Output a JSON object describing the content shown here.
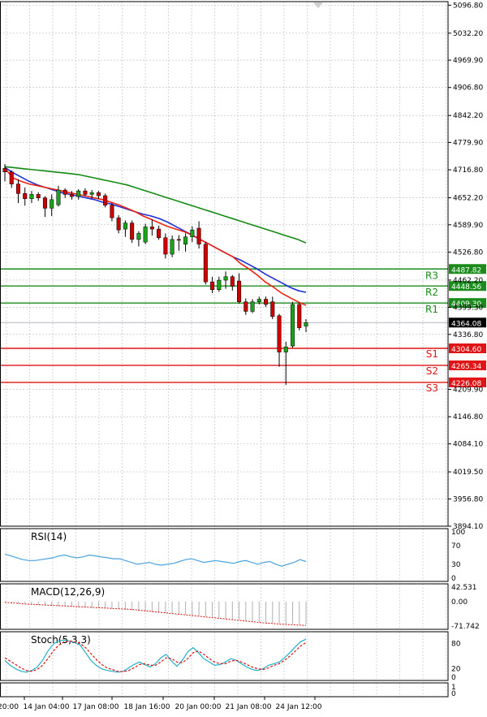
{
  "colors": {
    "background": "#ffffff",
    "grid": "#9aa0a6",
    "frame": "#000000",
    "bull": "#1aa31a",
    "bear": "#cc0000",
    "wick": "#000000",
    "ma_fast": "#ee2211",
    "ma_mid": "#1f2fd6",
    "ma_slow": "#138a13",
    "resistance": "#1b8c1b",
    "support": "#e01414",
    "current": "#000000",
    "rsi": "#4aa3df",
    "macd_hist": "#b0b0b0",
    "macd_signal": "#dd1111",
    "stoch_main": "#21b0c8",
    "stoch_signal": "#dd1111"
  },
  "chart_data": {
    "type": "candlestick",
    "title": "",
    "y_ticks": [
      "5096.80",
      "5032.20",
      "4969.90",
      "4906.80",
      "4842.20",
      "4779.90",
      "4716.80",
      "4652.20",
      "4589.90",
      "4526.80",
      "4462.20",
      "4399.30",
      "4336.80",
      "4209.90",
      "4146.80",
      "4084.10",
      "4019.50",
      "3956.80",
      "3894.10"
    ],
    "x_ticks": [
      "20:00",
      "14 Jan 04:00",
      "17 Jan 08:00",
      "18 Jan 16:00",
      "20 Jan 00:00",
      "21 Jan 08:00",
      "24 Jan 12:00"
    ],
    "ylim": [
      3894.1,
      5105
    ],
    "candles": [
      {
        "o": 4720,
        "h": 4730,
        "l": 4690,
        "c": 4712
      },
      {
        "o": 4712,
        "h": 4715,
        "l": 4675,
        "c": 4684
      },
      {
        "o": 4684,
        "h": 4695,
        "l": 4640,
        "c": 4662
      },
      {
        "o": 4662,
        "h": 4676,
        "l": 4634,
        "c": 4650
      },
      {
        "o": 4650,
        "h": 4668,
        "l": 4640,
        "c": 4660
      },
      {
        "o": 4660,
        "h": 4665,
        "l": 4645,
        "c": 4652
      },
      {
        "o": 4652,
        "h": 4656,
        "l": 4608,
        "c": 4628
      },
      {
        "o": 4628,
        "h": 4660,
        "l": 4610,
        "c": 4648
      },
      {
        "o": 4636,
        "h": 4680,
        "l": 4632,
        "c": 4670
      },
      {
        "o": 4670,
        "h": 4674,
        "l": 4652,
        "c": 4660
      },
      {
        "o": 4660,
        "h": 4668,
        "l": 4648,
        "c": 4655
      },
      {
        "o": 4655,
        "h": 4672,
        "l": 4648,
        "c": 4668
      },
      {
        "o": 4668,
        "h": 4674,
        "l": 4656,
        "c": 4660
      },
      {
        "o": 4660,
        "h": 4670,
        "l": 4650,
        "c": 4664
      },
      {
        "o": 4664,
        "h": 4668,
        "l": 4650,
        "c": 4657
      },
      {
        "o": 4657,
        "h": 4662,
        "l": 4630,
        "c": 4635
      },
      {
        "o": 4635,
        "h": 4640,
        "l": 4598,
        "c": 4606
      },
      {
        "o": 4606,
        "h": 4612,
        "l": 4570,
        "c": 4578
      },
      {
        "o": 4580,
        "h": 4600,
        "l": 4562,
        "c": 4594
      },
      {
        "o": 4594,
        "h": 4600,
        "l": 4548,
        "c": 4556
      },
      {
        "o": 4556,
        "h": 4575,
        "l": 4540,
        "c": 4570
      },
      {
        "o": 4550,
        "h": 4592,
        "l": 4545,
        "c": 4585
      },
      {
        "o": 4585,
        "h": 4602,
        "l": 4565,
        "c": 4580
      },
      {
        "o": 4580,
        "h": 4588,
        "l": 4555,
        "c": 4560
      },
      {
        "o": 4560,
        "h": 4570,
        "l": 4512,
        "c": 4522
      },
      {
        "o": 4522,
        "h": 4565,
        "l": 4515,
        "c": 4556
      },
      {
        "o": 4556,
        "h": 4566,
        "l": 4530,
        "c": 4555
      },
      {
        "o": 4545,
        "h": 4570,
        "l": 4528,
        "c": 4562
      },
      {
        "o": 4562,
        "h": 4586,
        "l": 4550,
        "c": 4578
      },
      {
        "o": 4582,
        "h": 4598,
        "l": 4535,
        "c": 4545
      },
      {
        "o": 4545,
        "h": 4550,
        "l": 4452,
        "c": 4458
      },
      {
        "o": 4458,
        "h": 4470,
        "l": 4432,
        "c": 4440
      },
      {
        "o": 4440,
        "h": 4470,
        "l": 4435,
        "c": 4462
      },
      {
        "o": 4462,
        "h": 4482,
        "l": 4442,
        "c": 4470
      },
      {
        "o": 4470,
        "h": 4474,
        "l": 4438,
        "c": 4448
      },
      {
        "o": 4460,
        "h": 4478,
        "l": 4408,
        "c": 4412
      },
      {
        "o": 4412,
        "h": 4420,
        "l": 4382,
        "c": 4390
      },
      {
        "o": 4390,
        "h": 4418,
        "l": 4386,
        "c": 4412
      },
      {
        "o": 4412,
        "h": 4424,
        "l": 4406,
        "c": 4418
      },
      {
        "o": 4418,
        "h": 4424,
        "l": 4400,
        "c": 4406
      },
      {
        "o": 4412,
        "h": 4424,
        "l": 4372,
        "c": 4378
      },
      {
        "o": 4380,
        "h": 4384,
        "l": 4262,
        "c": 4296
      },
      {
        "o": 4296,
        "h": 4320,
        "l": 4220,
        "c": 4308
      },
      {
        "o": 4310,
        "h": 4412,
        "l": 4306,
        "c": 4406
      },
      {
        "o": 4406,
        "h": 4410,
        "l": 4346,
        "c": 4352
      },
      {
        "o": 4356,
        "h": 4372,
        "l": 4342,
        "c": 4364
      }
    ],
    "ma_fast": [
      4720,
      4698,
      4690,
      4684,
      4680,
      4676,
      4672,
      4668,
      4664,
      4660,
      4656,
      4652,
      4648,
      4642,
      4636,
      4628,
      4620,
      4610,
      4602,
      4594,
      4586,
      4580,
      4574,
      4566,
      4556,
      4546,
      4536,
      4526,
      4516,
      4500,
      4488,
      4474,
      4458,
      4446,
      4432,
      4422,
      4412,
      4404
    ],
    "ma_mid": [
      4722,
      4710,
      4700,
      4690,
      4682,
      4676,
      4670,
      4664,
      4660,
      4656,
      4652,
      4648,
      4642,
      4638,
      4632,
      4626,
      4620,
      4614,
      4610,
      4604,
      4596,
      4586,
      4576,
      4566,
      4556,
      4546,
      4536,
      4526,
      4516,
      4508,
      4498,
      4488,
      4476,
      4466,
      4456,
      4446,
      4438,
      4434
    ],
    "ma_slow": [
      4724,
      4722,
      4720,
      4718,
      4716,
      4714,
      4712,
      4710,
      4708,
      4706,
      4702,
      4698,
      4694,
      4690,
      4686,
      4682,
      4676,
      4670,
      4664,
      4658,
      4652,
      4646,
      4640,
      4634,
      4628,
      4622,
      4616,
      4610,
      4604,
      4598,
      4592,
      4586,
      4580,
      4574,
      4568,
      4562,
      4556,
      4548
    ],
    "levels": [
      {
        "name": "R3",
        "value": "4487.82",
        "kind": "resistance"
      },
      {
        "name": "R2",
        "value": "4448.56",
        "kind": "resistance"
      },
      {
        "name": "R1",
        "value": "4409.30",
        "kind": "resistance"
      },
      {
        "name": "S1",
        "value": "4304.60",
        "kind": "support"
      },
      {
        "name": "S2",
        "value": "4265.34",
        "kind": "support"
      },
      {
        "name": "S3",
        "value": "4226.08",
        "kind": "support"
      }
    ],
    "current_price": "4364.08",
    "indicators": {
      "rsi": {
        "label": "RSI(14)",
        "scale": [
          "100",
          "70",
          "30",
          "0"
        ],
        "ylim": [
          0,
          100
        ],
        "values": [
          52,
          48,
          44,
          40,
          38,
          38,
          40,
          42,
          44,
          48,
          50,
          46,
          44,
          46,
          50,
          48,
          46,
          44,
          42,
          42,
          38,
          34,
          30,
          32,
          34,
          30,
          28,
          30,
          32,
          36,
          40,
          42,
          38,
          34,
          36,
          38,
          36,
          34,
          32,
          36,
          38,
          34,
          30,
          34,
          36,
          30,
          26,
          30,
          34,
          40,
          36
        ]
      },
      "macd": {
        "label": "MACD(12,26,9)",
        "scale": [
          "42.531",
          "0.00",
          "-71.742"
        ],
        "ylim": [
          -71.742,
          42.531
        ],
        "hist": [
          -2,
          -4,
          -6,
          -8,
          -9,
          -10,
          -11,
          -12,
          -13,
          -14,
          -15,
          -16,
          -17,
          -18,
          -19,
          -20,
          -21,
          -22,
          -24,
          -26,
          -28,
          -30,
          -32,
          -33,
          -34,
          -35,
          -36,
          -38,
          -40,
          -42,
          -44,
          -46,
          -48,
          -50,
          -52,
          -54,
          -56,
          -58,
          -60,
          -62,
          -63,
          -64,
          -65,
          -66,
          -66,
          -66
        ],
        "signal": [
          -2,
          -4,
          -5,
          -7,
          -8,
          -9,
          -10,
          -11,
          -12,
          -13,
          -14,
          -15,
          -16,
          -17,
          -18,
          -19,
          -20,
          -21,
          -22,
          -23,
          -25,
          -27,
          -29,
          -31,
          -33,
          -35,
          -37,
          -39,
          -41,
          -43,
          -45,
          -47,
          -49,
          -51,
          -53,
          -55,
          -57,
          -59,
          -61,
          -63,
          -64,
          -66,
          -67,
          -68,
          -69,
          -70
        ]
      },
      "stoch": {
        "label": "Stoch(5,3,3)",
        "scale": [
          "80",
          "20",
          "0"
        ],
        "ylim": [
          0,
          100
        ],
        "main": [
          40,
          28,
          20,
          14,
          12,
          16,
          24,
          40,
          62,
          78,
          86,
          88,
          86,
          82,
          76,
          58,
          40,
          28,
          20,
          16,
          14,
          12,
          14,
          22,
          30,
          36,
          30,
          24,
          32,
          46,
          54,
          38,
          26,
          40,
          60,
          70,
          58,
          44,
          36,
          28,
          30,
          36,
          44,
          40,
          32,
          24,
          18,
          16,
          20,
          28,
          32,
          36,
          46,
          58,
          72,
          84,
          90
        ],
        "signal": [
          46,
          38,
          30,
          22,
          16,
          14,
          18,
          28,
          44,
          62,
          76,
          84,
          86,
          84,
          80,
          70,
          56,
          42,
          30,
          22,
          18,
          14,
          13,
          16,
          22,
          30,
          32,
          28,
          28,
          36,
          46,
          44,
          36,
          34,
          44,
          58,
          62,
          54,
          44,
          36,
          32,
          32,
          38,
          40,
          36,
          30,
          24,
          20,
          18,
          22,
          28,
          32,
          40,
          50,
          62,
          74,
          82
        ]
      },
      "last_pane_scale": [
        "1",
        "0"
      ]
    }
  }
}
